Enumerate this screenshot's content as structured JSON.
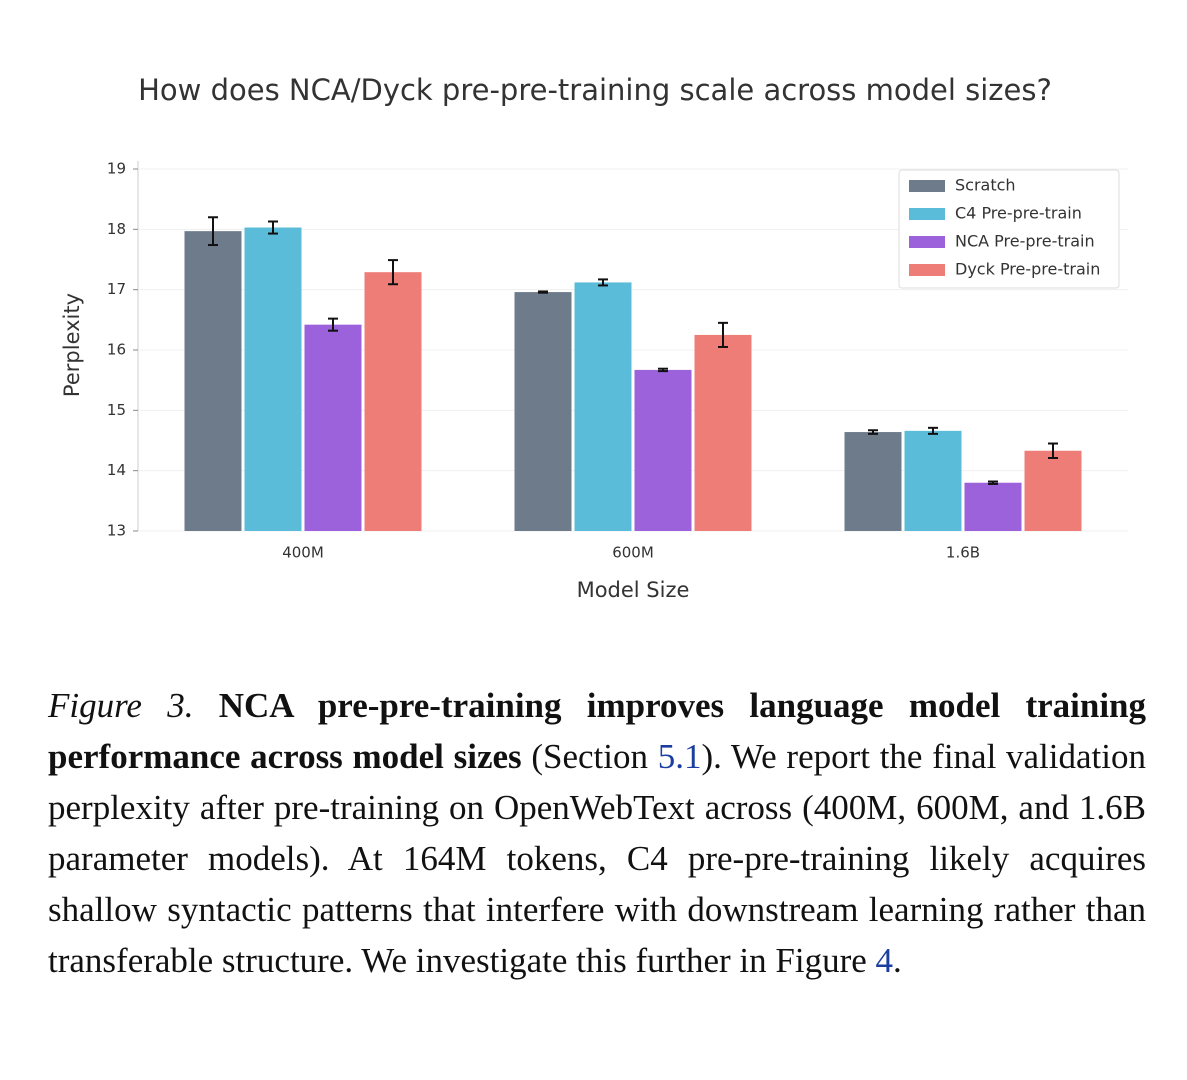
{
  "chart_data": {
    "type": "bar",
    "title": "How does NCA/Dyck pre-pre-training scale across model sizes?",
    "xlabel": "Model Size",
    "ylabel": "Perplexity",
    "categories": [
      "400M",
      "600M",
      "1.6B"
    ],
    "series": [
      {
        "name": "Scratch",
        "color": "#6e7b8b",
        "values": [
          17.97,
          16.96,
          14.64
        ],
        "errors": [
          0.23,
          0.01,
          0.03
        ]
      },
      {
        "name": "C4 Pre-pre-train",
        "color": "#5bbcd9",
        "values": [
          18.03,
          17.12,
          14.66
        ],
        "errors": [
          0.1,
          0.05,
          0.05
        ]
      },
      {
        "name": "NCA Pre-pre-train",
        "color": "#9b62dc",
        "values": [
          16.42,
          15.67,
          13.8
        ],
        "errors": [
          0.1,
          0.02,
          0.02
        ]
      },
      {
        "name": "Dyck Pre-pre-train",
        "color": "#ee7d78",
        "values": [
          17.29,
          16.25,
          14.33
        ],
        "errors": [
          0.2,
          0.2,
          0.12
        ]
      }
    ],
    "ylim": [
      13,
      19
    ],
    "yticks": [
      13,
      14,
      15,
      16,
      17,
      18,
      19
    ],
    "grid": true,
    "legend": "upper right"
  },
  "caption": {
    "label": "Figure 3.",
    "title": "NCA pre-pre-training improves language model training performance across model sizes",
    "body_1": " (Section ",
    "ref_1": "5.1",
    "body_2": ").  We report the final validation perplexity after pre-training on OpenWebText across (400M, 600M, and 1.6B parameter models). At 164M tokens, C4 pre-pre-training likely acquires shallow syntactic patterns that interfere with downstream learning rather than transferable structure. We investigate this further in Figure ",
    "ref_2": "4",
    "body_3": "."
  }
}
